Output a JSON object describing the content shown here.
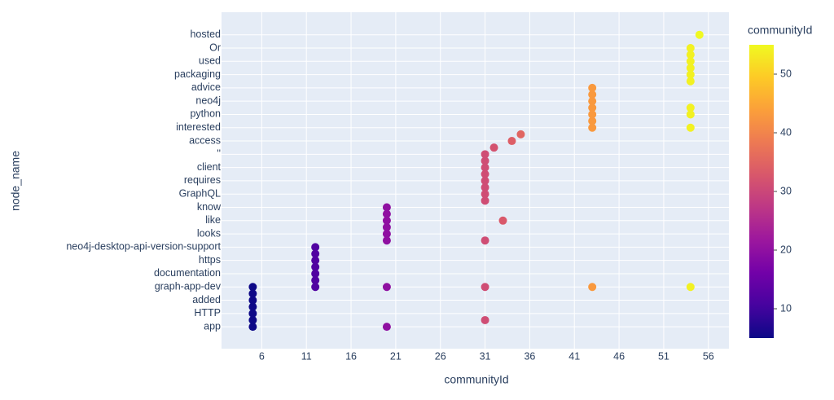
{
  "chart_data": {
    "type": "scatter",
    "x_label": "communityId",
    "y_label": "node_name",
    "colorbar_title": "communityId",
    "categories": [
      "app",
      null,
      "HTTP",
      null,
      "added",
      null,
      "graph-app-dev",
      null,
      "documentation",
      null,
      "https",
      null,
      "neo4j-desktop-api-version-support",
      null,
      "looks",
      null,
      "like",
      null,
      "know",
      null,
      "GraphQL",
      null,
      "requires",
      null,
      "client",
      null,
      "''",
      null,
      "access",
      null,
      "interested",
      null,
      "python",
      null,
      "neo4j",
      null,
      "advice",
      null,
      "packaging",
      null,
      "used",
      null,
      "Or",
      null,
      "hosted"
    ],
    "values": [
      [
        5,
        20
      ],
      [
        5,
        31
      ],
      [
        5
      ],
      [
        5
      ],
      [
        5
      ],
      [
        5
      ],
      [
        5,
        12,
        20,
        31,
        43,
        54
      ],
      [
        12
      ],
      [
        12
      ],
      [
        12
      ],
      [
        12
      ],
      [
        12
      ],
      [
        12
      ],
      [
        20,
        31
      ],
      [
        20
      ],
      [
        20
      ],
      [
        20,
        33
      ],
      [
        20
      ],
      [
        20
      ],
      [
        31
      ],
      [
        31
      ],
      [
        31
      ],
      [
        31
      ],
      [
        31
      ],
      [
        31
      ],
      [
        31
      ],
      [
        31
      ],
      [
        32
      ],
      [
        34
      ],
      [
        35
      ],
      [
        43,
        54
      ],
      [
        43
      ],
      [
        43,
        54
      ],
      [
        43,
        54
      ],
      [
        43
      ],
      [
        43
      ],
      [
        43
      ],
      [
        54
      ],
      [
        54
      ],
      [
        54
      ],
      [
        54
      ],
      [
        54
      ],
      [
        54
      ],
      [],
      [
        55
      ]
    ],
    "xlim": [
      1.5,
      58.3
    ],
    "xticks": [
      6,
      11,
      16,
      21,
      26,
      31,
      36,
      41,
      46,
      51,
      56
    ],
    "ylim": [
      -3.3,
      47.4
    ],
    "clim": [
      5,
      55
    ],
    "cticks": [
      10,
      20,
      30,
      40,
      50
    ],
    "colorscale": [
      "#0d0887",
      "#46039f",
      "#7201a8",
      "#9c179e",
      "#bd3786",
      "#d8576b",
      "#ed7953",
      "#fb9f3a",
      "#fdca26",
      "#f0f921"
    ],
    "grid": true
  }
}
